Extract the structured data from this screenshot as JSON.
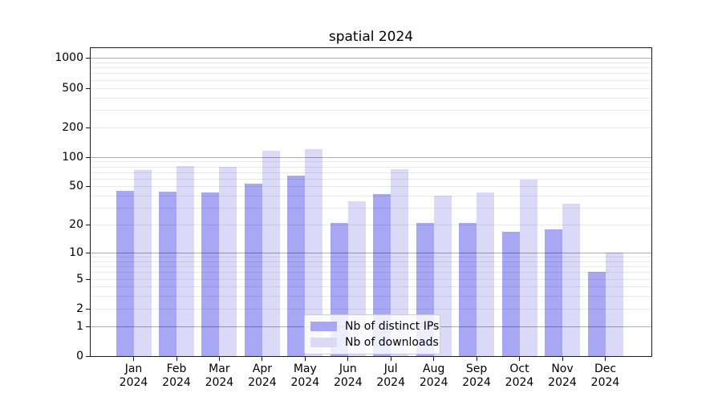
{
  "chart_data": {
    "type": "bar",
    "title": "spatial 2024",
    "x_tick_months": [
      "Jan",
      "Feb",
      "Mar",
      "Apr",
      "May",
      "Jun",
      "Jul",
      "Aug",
      "Sep",
      "Oct",
      "Nov",
      "Dec"
    ],
    "x_tick_year": "2024",
    "categories": [
      "Jan 2024",
      "Feb 2024",
      "Mar 2024",
      "Apr 2024",
      "May 2024",
      "Jun 2024",
      "Jul 2024",
      "Aug 2024",
      "Sep 2024",
      "Oct 2024",
      "Nov 2024",
      "Dec 2024"
    ],
    "y_scale": "log10(value+1)",
    "y_ticks": [
      0,
      1,
      2,
      5,
      10,
      20,
      50,
      100,
      200,
      500,
      1000
    ],
    "y_major_gridlines": [
      1,
      10,
      100,
      1000
    ],
    "ylim": [
      0,
      1250
    ],
    "grid": "on",
    "legend_position": "lower center",
    "series": [
      {
        "name": "Nb of distinct IPs",
        "color": "#a7a7f4",
        "values": [
          45,
          44,
          43,
          53,
          64,
          21,
          42,
          21,
          21,
          17,
          18,
          6
        ]
      },
      {
        "name": "Nb of downloads",
        "color": "#dadaf8",
        "values": [
          73,
          81,
          79,
          115,
          120,
          35,
          75,
          40,
          43,
          59,
          33,
          10
        ]
      }
    ]
  }
}
